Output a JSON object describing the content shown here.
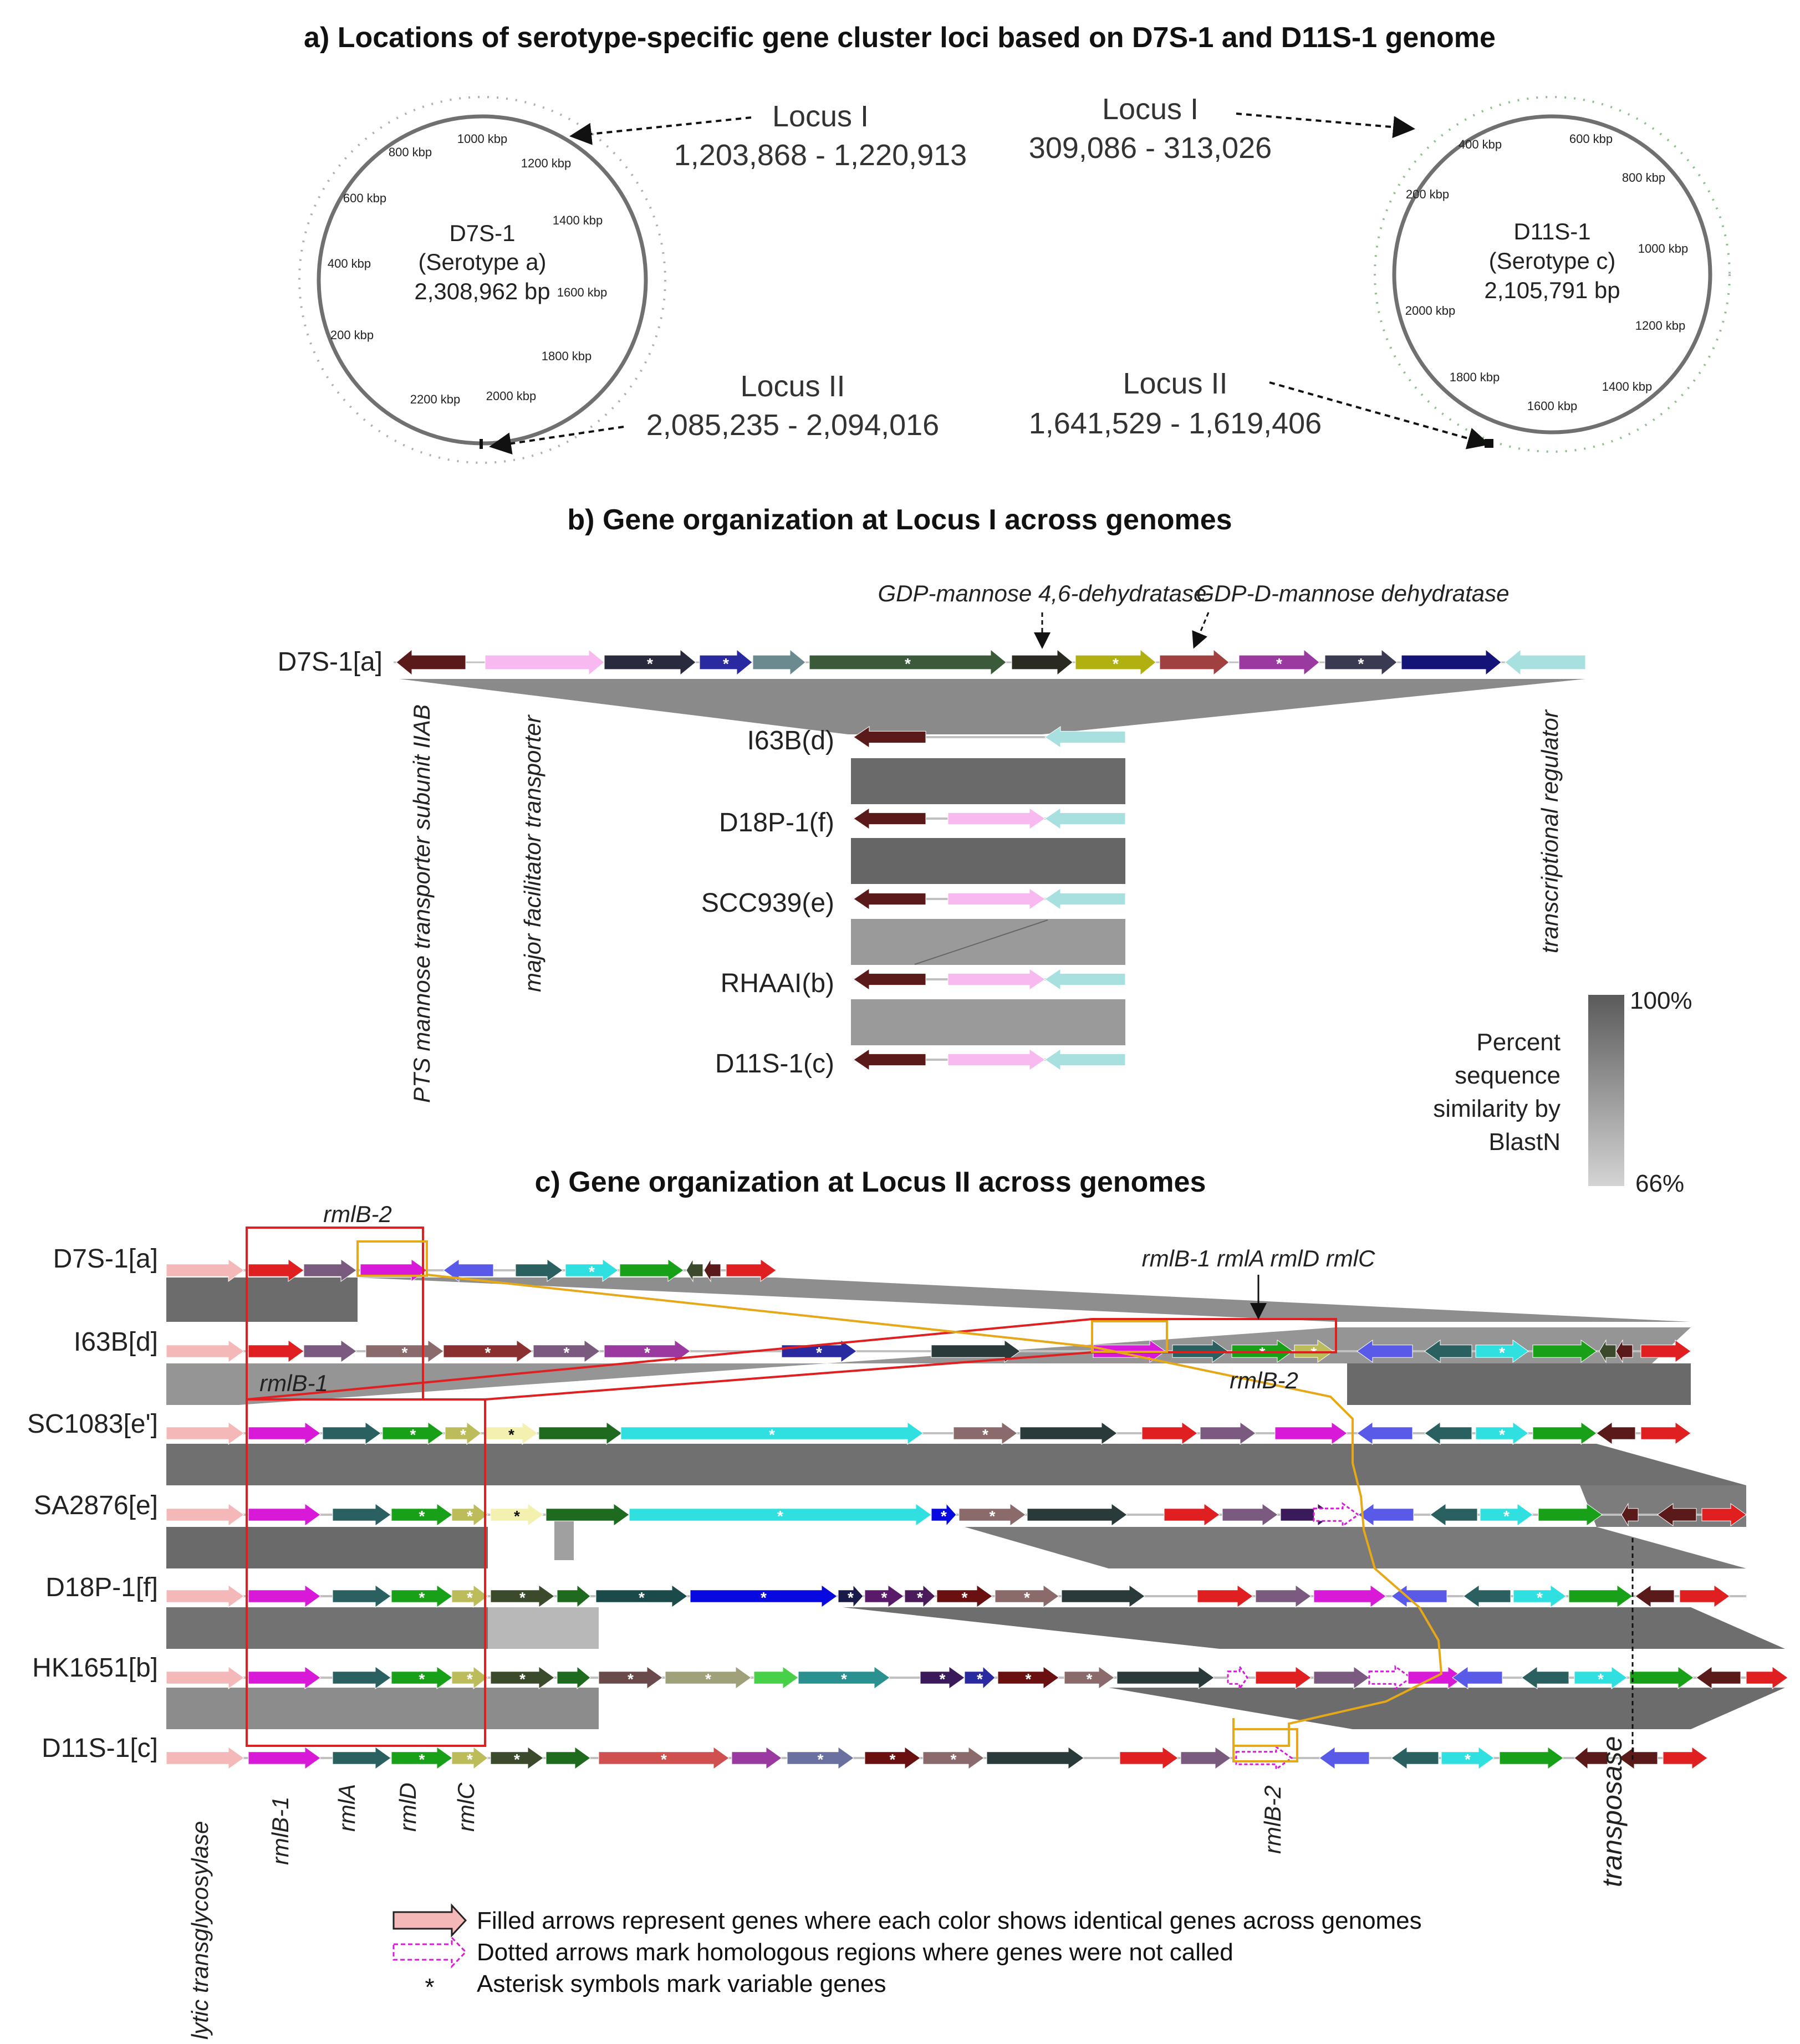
{
  "titles": {
    "a": "a) Locations of serotype-specific gene cluster loci based on D7S-1 and D11S-1 genome",
    "b": "b) Gene organization at Locus I across genomes",
    "c": "c) Gene organization at Locus II across genomes"
  },
  "genomes": {
    "d7s1": {
      "name": "D7S-1",
      "serotype": "(Serotype a)",
      "size": "2,308,962 bp",
      "ticks": [
        "1000 kbp",
        "800 kbp",
        "1200 kbp",
        "600 kbp",
        "1400 kbp",
        "400 kbp",
        "1600 kbp",
        "200 kbp",
        "1800 kbp",
        "2200 kbp",
        "2000 kbp"
      ]
    },
    "d11s1": {
      "name": "D11S-1",
      "serotype": "(Serotype c)",
      "size": "2,105,791 bp",
      "ticks": [
        "400 kbp",
        "600 kbp",
        "200 kbp",
        "800 kbp",
        "1000 kbp",
        "2000 kbp",
        "1200 kbp",
        "1800 kbp",
        "1400 kbp",
        "1600 kbp"
      ]
    }
  },
  "loci": {
    "d7_l1_name": "Locus I",
    "d7_l1_range": "1,203,868 - 1,220,913",
    "d11_l1_name": "Locus I",
    "d11_l1_range": "309,086 - 313,026",
    "d7_l2_name": "Locus II",
    "d7_l2_range": "2,085,235 - 2,094,016",
    "d11_l2_name": "Locus II",
    "d11_l2_range": "1,641,529 - 1,619,406"
  },
  "b": {
    "top_label": "D7S-1[a]",
    "rows": [
      "I63B(d)",
      "D18P-1(f)",
      "SCC939(e)",
      "RHAAI(b)",
      "D11S-1(c)"
    ],
    "annot_gdp46": "GDP-mannose 4,6-dehydratase",
    "annot_gdpd": "GDP-D-mannose dehydratase",
    "vert_pts": "PTS mannose transporter subunit IIAB",
    "vert_mft": "major facilitator transporter",
    "vert_tr": "transcriptional regulator"
  },
  "scale": {
    "max": "100%",
    "min": "66%",
    "caption": [
      "Percent",
      "sequence",
      "similarity by",
      "BlastN"
    ]
  },
  "c": {
    "rows": [
      "D7S-1[a]",
      "I63B[d]",
      "SC1083[e']",
      "SA2876[e]",
      "D18P-1[f]",
      "HK1651[b]",
      "D11S-1[c]"
    ],
    "rmlB2_top": "rmlB-2",
    "rml_cluster": "rmlB-1 rmlA rmlD rmlC",
    "rmlB1_mid": "rmlB-1",
    "rmlB2_mid": "rmlB-2",
    "bottom": [
      "lytic transglycosylase",
      "rmlB-1",
      "rmlA",
      "rmlD",
      "rmlC",
      "rmlB-2",
      "transposase"
    ]
  },
  "legend": [
    "Filled arrows represent genes where each color shows identical genes across genomes",
    "Dotted arrows mark homologous regions where genes were not called",
    "Asterisk symbols mark variable genes"
  ],
  "legend_star": "*",
  "colors": {
    "pink": "#f4b8b8",
    "red": "#e02020",
    "mauve": "#7a5a7e",
    "magenta": "#d81ad8",
    "blue": "#5a5ae8",
    "teal": "#2a6060",
    "cyan": "#30e0e0",
    "green": "#18a018",
    "maroon": "#5a1a1a",
    "darkgreen": "#1e6a1e",
    "olive": "#bcbc5a",
    "cream": "#f4f0b0",
    "darkteal": "#1a4a4a",
    "gray": "#5a5a5a",
    "lightgray": "#a8a8a8",
    "brownred": "#8a3030",
    "rosybrown": "#8a6a6a",
    "purple": "#9a3aa0",
    "navy": "#2a2aa0",
    "lightcyan": "#a8e0e0",
    "lightpink": "#f8b8f0",
    "darkolive": "#3a4a2a",
    "slategray": "#6a8a90",
    "dustyred": "#a04040"
  }
}
